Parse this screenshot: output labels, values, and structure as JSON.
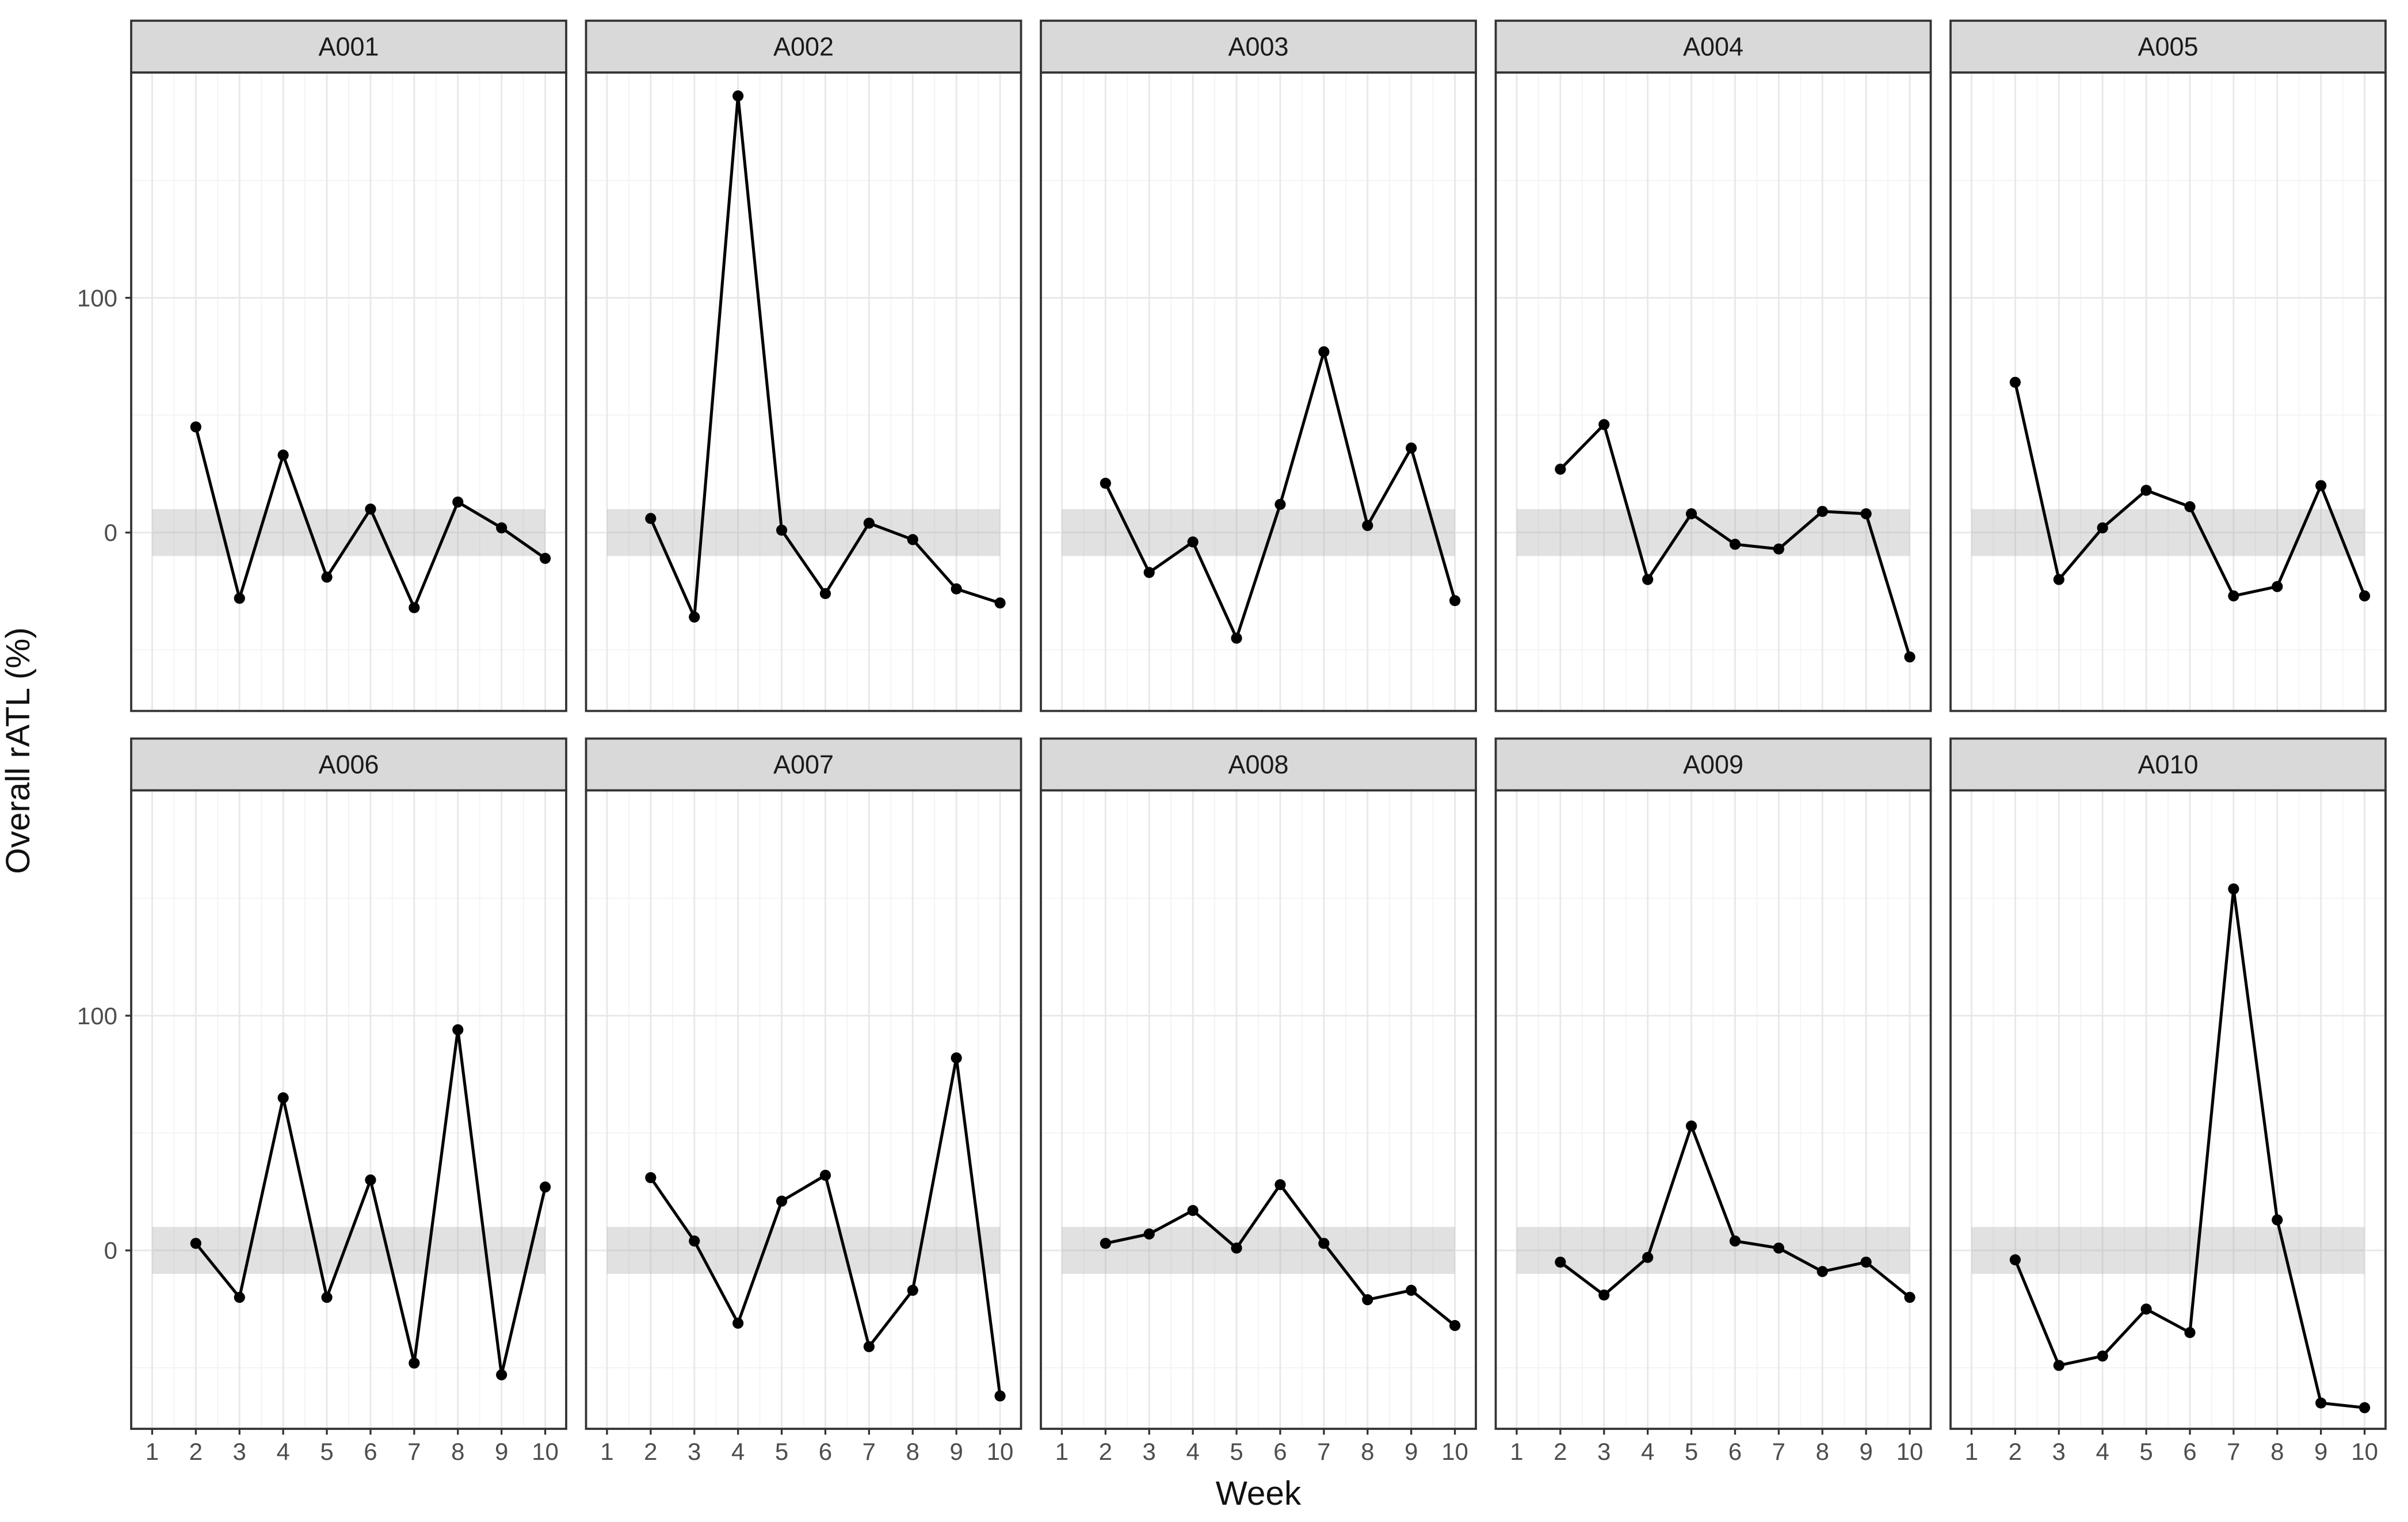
{
  "chart_data": {
    "type": "line",
    "title": "",
    "xlabel": "Week",
    "ylabel": "Overall rATL (%)",
    "x_tick_labels": [
      "1",
      "2",
      "3",
      "4",
      "5",
      "6",
      "7",
      "8",
      "9",
      "10"
    ],
    "y_tick_labels": [
      "100",
      "0"
    ],
    "y_tick_values": [
      100,
      0
    ],
    "xlim": [
      0.52,
      10.48
    ],
    "ylim": [
      -76,
      196
    ],
    "grid": {
      "on": true,
      "major_y": [
        0,
        100
      ],
      "minor_y": [
        -50,
        50,
        150
      ],
      "major_x": [
        1,
        2,
        3,
        4,
        5,
        6,
        7,
        8,
        9,
        10
      ],
      "minor_x": [
        1.5,
        2.5,
        3.5,
        4.5,
        5.5,
        6.5,
        7.5,
        8.5,
        9.5
      ]
    },
    "reference_band": {
      "xmin": 1,
      "xmax": 10,
      "ymin": -10,
      "ymax": 10
    },
    "weeks": [
      2,
      3,
      4,
      5,
      6,
      7,
      8,
      9,
      10
    ],
    "legend_position": "none",
    "facets": [
      {
        "label": "A001",
        "values": [
          45,
          -28,
          33,
          -19,
          10,
          -32,
          13,
          2,
          -11
        ]
      },
      {
        "label": "A002",
        "values": [
          6,
          -36,
          186,
          1,
          -26,
          4,
          -3,
          -24,
          -30
        ]
      },
      {
        "label": "A003",
        "values": [
          21,
          -17,
          -4,
          -45,
          12,
          77,
          3,
          36,
          -29
        ]
      },
      {
        "label": "A004",
        "values": [
          27,
          46,
          -20,
          8,
          -5,
          -7,
          9,
          8,
          -53
        ]
      },
      {
        "label": "A005",
        "values": [
          64,
          -20,
          2,
          18,
          11,
          -27,
          -23,
          20,
          -27
        ]
      },
      {
        "label": "A006",
        "values": [
          3,
          -20,
          65,
          -20,
          30,
          -48,
          94,
          -53,
          27
        ]
      },
      {
        "label": "A007",
        "values": [
          31,
          4,
          -31,
          21,
          32,
          -41,
          -17,
          82,
          -62
        ]
      },
      {
        "label": "A008",
        "values": [
          3,
          7,
          17,
          1,
          28,
          3,
          -21,
          -17,
          -32
        ]
      },
      {
        "label": "A009",
        "values": [
          -5,
          -19,
          -3,
          53,
          4,
          1,
          -9,
          -5,
          -20
        ]
      },
      {
        "label": "A010",
        "values": [
          -4,
          -49,
          -45,
          -25,
          -35,
          154,
          13,
          -65,
          -67
        ]
      }
    ],
    "colors": {
      "line": "#000000",
      "point": "#000000",
      "strip_fill": "#d9d9d9",
      "strip_text": "#1a1a1a",
      "panel_border": "#333333",
      "grid_major": "#e8e8e8",
      "grid_minor": "#f4f4f4",
      "band_fill": "#a9a9a9",
      "tick_text": "#4d4d4d",
      "axis_title_text": "#111111",
      "background": "#ffffff"
    }
  }
}
